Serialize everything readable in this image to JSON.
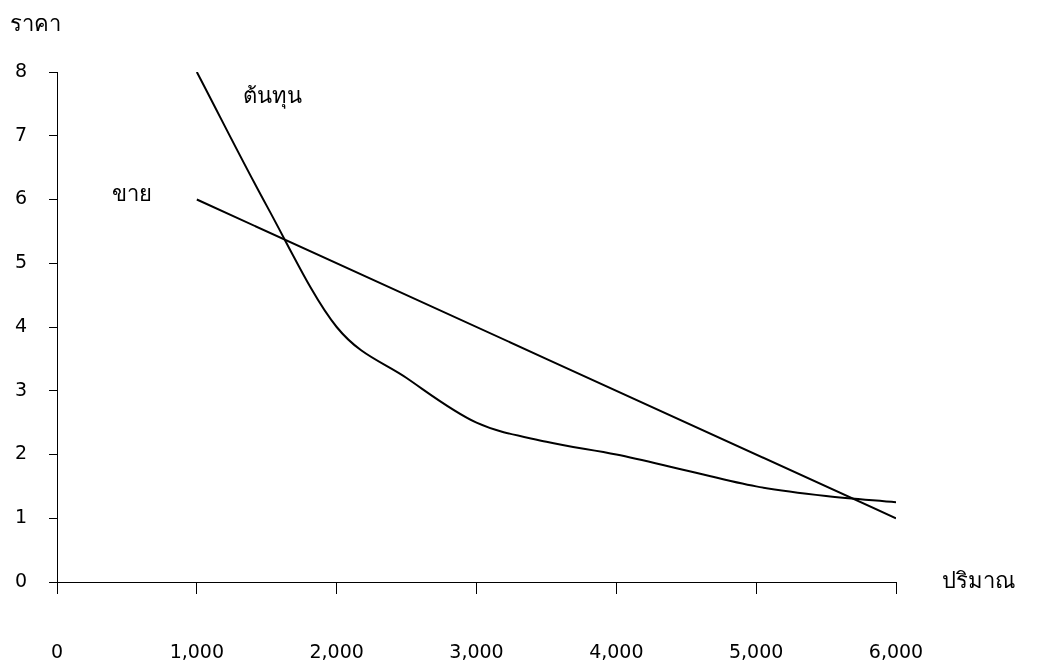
{
  "chart_data": {
    "type": "line",
    "xlabel": "ปริมาณ",
    "ylabel": "ราคา",
    "xlim": [
      0,
      6000
    ],
    "xticks": [
      {
        "value": 0,
        "label": "0"
      },
      {
        "value": 1000,
        "label": "1,000"
      },
      {
        "value": 2000,
        "label": "2,000"
      },
      {
        "value": 3000,
        "label": "3,000"
      },
      {
        "value": 4000,
        "label": "4,000"
      },
      {
        "value": 5000,
        "label": "5,000"
      },
      {
        "value": 6000,
        "label": "6,000"
      }
    ],
    "ylim": [
      0,
      8
    ],
    "yticks": [
      0,
      1,
      2,
      3,
      4,
      5,
      6,
      7,
      8
    ],
    "grid": false,
    "legend": false,
    "marker": "none",
    "line_style": "solid",
    "series": [
      {
        "name": "ต้นทุน",
        "color": "#000000",
        "x": [
          1000,
          1500,
          2000,
          2500,
          3000,
          3500,
          4000,
          4500,
          5000,
          5500,
          6000
        ],
        "values": [
          8,
          5.9,
          4,
          3.2,
          2.5,
          2.2,
          2,
          1.75,
          1.5,
          1.35,
          1.25
        ]
      },
      {
        "name": "ขาย",
        "color": "#000000",
        "x": [
          1000,
          6000
        ],
        "values": [
          6,
          1
        ]
      }
    ]
  }
}
